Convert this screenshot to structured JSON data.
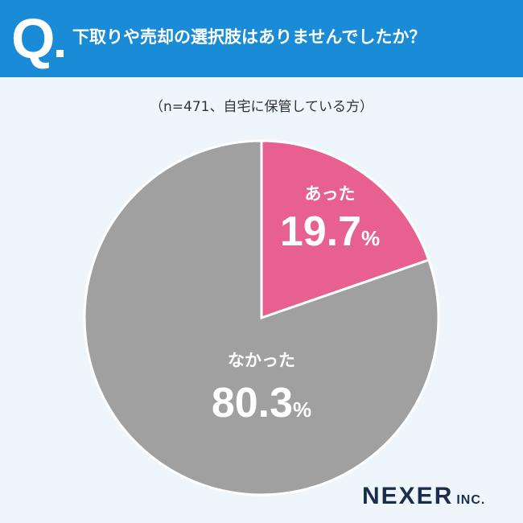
{
  "header": {
    "q_label": "Q",
    "question": "下取りや売却の選択肢はありませんでしたか？"
  },
  "subtitle": "（n=471、自宅に保管している方）",
  "logo": {
    "main": "NEXER",
    "sub": "INC."
  },
  "colors": {
    "header": "#1a8bd6",
    "background": "#eef5fb",
    "yes_slice": "#e8608f",
    "no_slice": "#a0a0a0"
  },
  "chart_data": {
    "type": "pie",
    "title": "下取りや売却の選択肢はありませんでしたか？",
    "slices": [
      {
        "label": "あった",
        "value": 19.7,
        "value_text": "19.7",
        "unit": "%",
        "color": "#e8608f"
      },
      {
        "label": "なかった",
        "value": 80.3,
        "value_text": "80.3",
        "unit": "%",
        "color": "#a0a0a0"
      }
    ],
    "start": "12 o'clock",
    "direction": "clockwise",
    "legend": "none"
  }
}
